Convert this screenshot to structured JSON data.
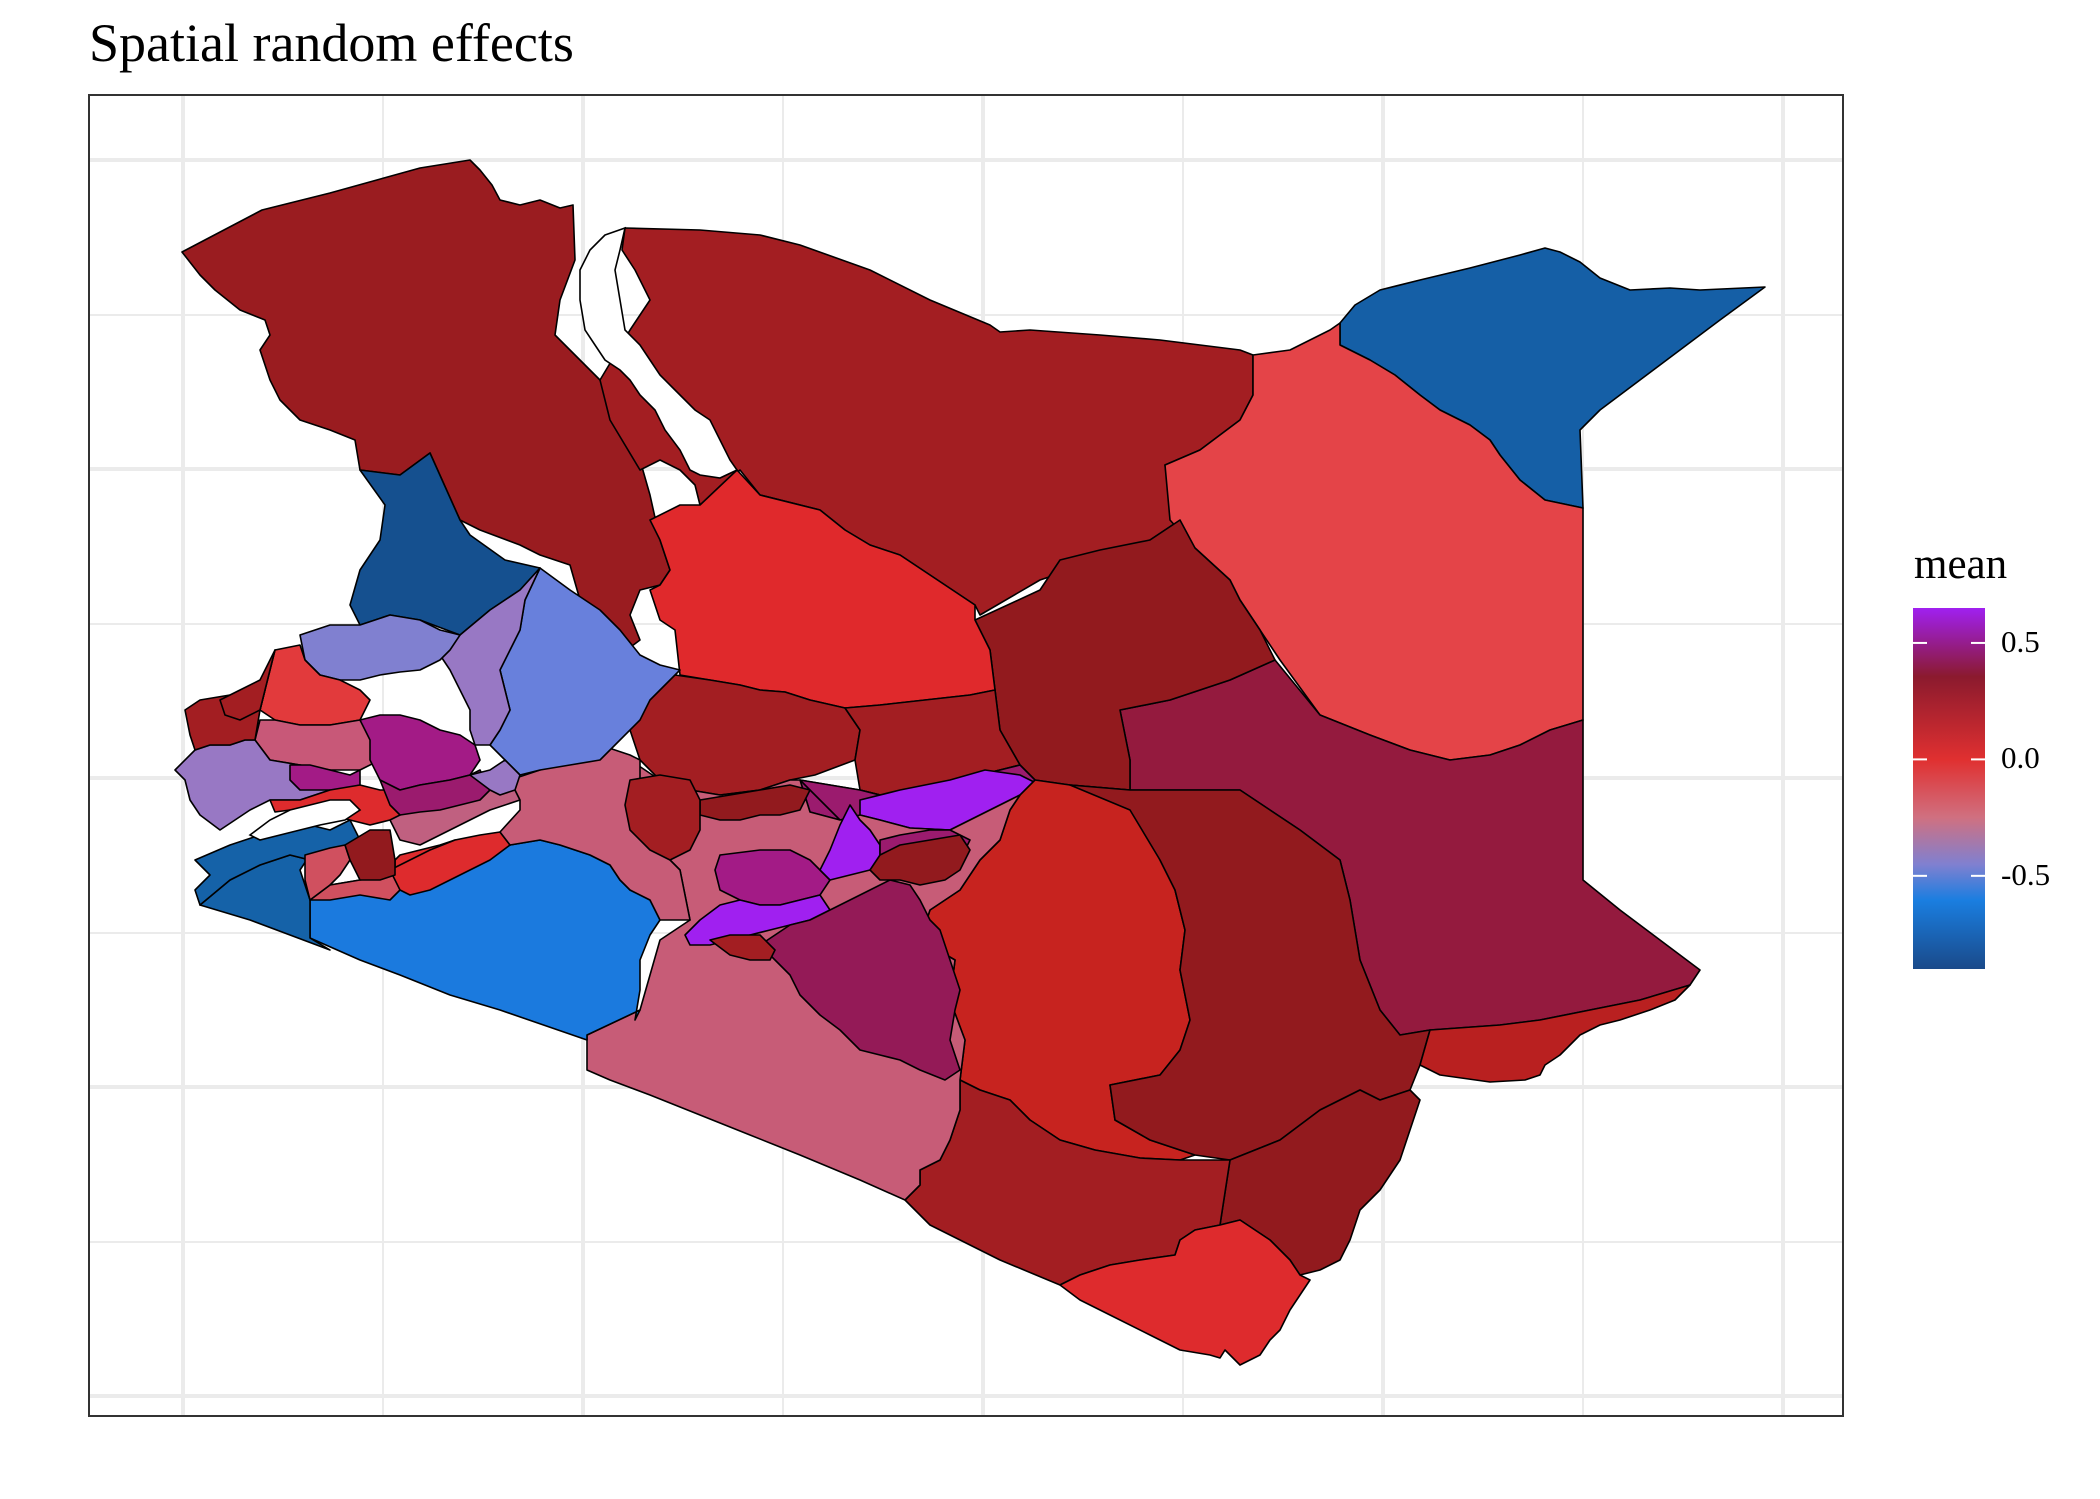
{
  "title": "Spatial random effects",
  "legend": {
    "title": "mean",
    "ticks": [
      {
        "value": 0.5,
        "label": "0.5"
      },
      {
        "value": 0.0,
        "label": "0.0"
      },
      {
        "value": -0.5,
        "label": "-0.5"
      }
    ],
    "range": [
      -0.9,
      0.65
    ],
    "stops": [
      {
        "value": 0.65,
        "color": "#a020f0"
      },
      {
        "value": 0.35,
        "color": "#8b1a2e"
      },
      {
        "value": 0.0,
        "color": "#e03030"
      },
      {
        "value": -0.25,
        "color": "#d07080"
      },
      {
        "value": -0.45,
        "color": "#8080d0"
      },
      {
        "value": -0.6,
        "color": "#1a7ee0"
      },
      {
        "value": -0.9,
        "color": "#1a4a8a"
      }
    ]
  },
  "colors": {
    "border": "#000000",
    "background": "#ffffff",
    "grid": "#ebebeb",
    "panel_border": "#333333"
  }
}
